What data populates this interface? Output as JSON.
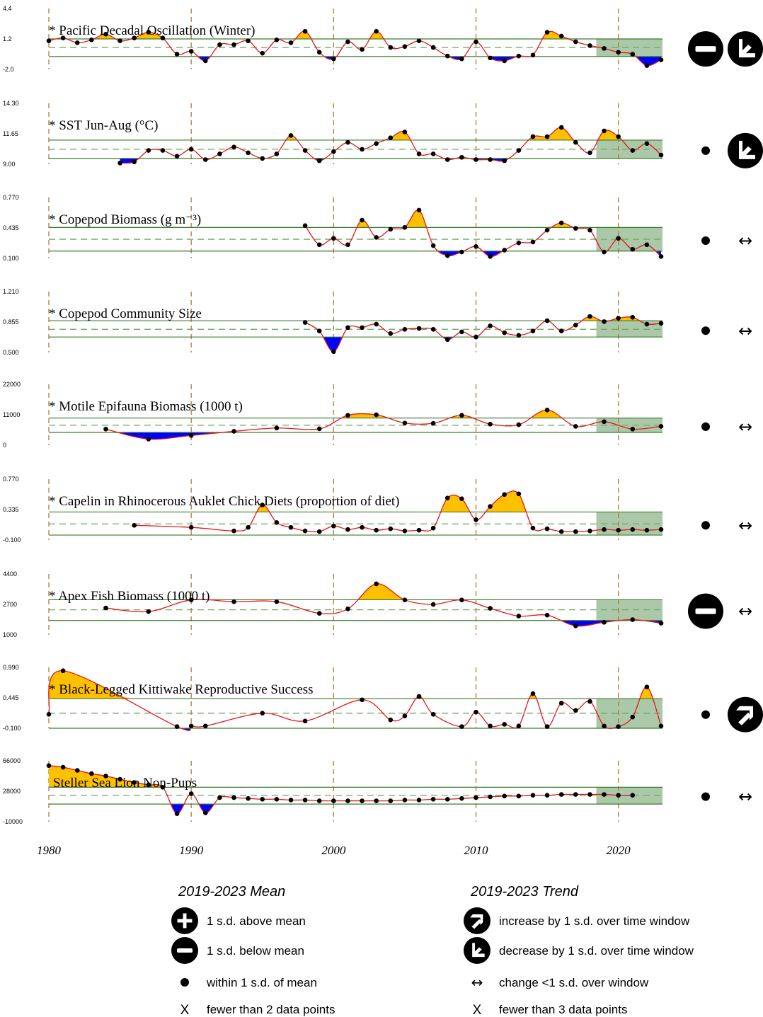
{
  "chart_data": {
    "type": "line",
    "x_axis": {
      "range": [
        1980,
        2023
      ],
      "tick_labels": [
        "1980",
        "1990",
        "2000",
        "2010",
        "2020"
      ],
      "tick_values": [
        1980,
        1990,
        2000,
        2010,
        2020
      ],
      "decade_guides": [
        1980,
        1990,
        2000,
        2010,
        2020
      ]
    },
    "highlight_window": [
      2019,
      2023
    ],
    "colors": {
      "line": "#e8141a",
      "above": "#ffc000",
      "below": "#0000ff",
      "sd_lines": "#3a7d2c",
      "mean_line": "#6fa862",
      "window": "#9cbf9a",
      "guides": "#b07a3a"
    },
    "panels": [
      {
        "title": "* Pacific Decadal Oscillation (Winter)",
        "ylim": [
          -2.0,
          4.4
        ],
        "tick_labels": [
          "4.4",
          "1.2",
          "-2.0"
        ],
        "mean": 0.3,
        "upper": 1.2,
        "lower": -0.65,
        "mean_status": "minus-icon",
        "trend_status": "decrease-icon",
        "years": [
          1980,
          1981,
          1982,
          1983,
          1984,
          1985,
          1986,
          1987,
          1988,
          1989,
          1990,
          1991,
          1992,
          1993,
          1994,
          1995,
          1996,
          1997,
          1998,
          1999,
          2000,
          2001,
          2002,
          2003,
          2004,
          2005,
          2006,
          2007,
          2008,
          2009,
          2010,
          2011,
          2012,
          2013,
          2014,
          2015,
          2016,
          2017,
          2018,
          2019,
          2020,
          2021,
          2022,
          2023
        ],
        "values": [
          1.0,
          1.3,
          0.8,
          1.1,
          1.7,
          1.0,
          1.3,
          1.9,
          1.3,
          -0.4,
          -0.1,
          -1.1,
          0.6,
          0.6,
          1.0,
          -0.3,
          1.1,
          0.8,
          2.0,
          -0.2,
          -0.9,
          0.9,
          0.1,
          2.0,
          0.3,
          0.4,
          1.0,
          0.3,
          -0.6,
          -0.9,
          0.9,
          -0.8,
          -1.1,
          -0.6,
          -0.5,
          1.9,
          1.5,
          0.9,
          0.5,
          0.2,
          -0.2,
          -0.4,
          -1.6,
          -1.0
        ]
      },
      {
        "title": "* SST Jun-Aug (°C)",
        "ylim": [
          9.0,
          14.3
        ],
        "tick_labels": [
          "14.30",
          "11.65",
          "9.00"
        ],
        "mean": 10.3,
        "upper": 11.1,
        "lower": 9.5,
        "mean_status": "dot-icon",
        "trend_status": "decrease-icon",
        "years": [
          1985,
          1986,
          1987,
          1988,
          1989,
          1990,
          1991,
          1992,
          1993,
          1994,
          1995,
          1996,
          1997,
          1998,
          1999,
          2000,
          2001,
          2002,
          2003,
          2004,
          2005,
          2006,
          2007,
          2008,
          2009,
          2010,
          2011,
          2012,
          2013,
          2014,
          2015,
          2016,
          2017,
          2018,
          2019,
          2020,
          2021,
          2022,
          2023
        ],
        "values": [
          9.1,
          9.2,
          10.2,
          10.2,
          9.7,
          10.3,
          9.4,
          9.9,
          10.5,
          10.0,
          9.5,
          9.9,
          11.5,
          10.2,
          9.3,
          10.1,
          10.9,
          10.3,
          10.8,
          11.3,
          11.8,
          9.9,
          9.9,
          9.4,
          9.6,
          9.4,
          9.4,
          9.3,
          10.2,
          11.4,
          11.4,
          12.2,
          10.9,
          10.0,
          11.9,
          11.4,
          10.2,
          10.8,
          9.8
        ]
      },
      {
        "title": "* Copepod Biomass (g m⁻³)",
        "ylim": [
          0.1,
          0.77
        ],
        "tick_labels": [
          "0.770",
          "0.435",
          "0.100"
        ],
        "mean": 0.31,
        "upper": 0.44,
        "lower": 0.18,
        "mean_status": "dot-icon",
        "trend_status": "change-small-icon",
        "years": [
          1998,
          1999,
          2000,
          2001,
          2002,
          2003,
          2004,
          2005,
          2006,
          2007,
          2008,
          2009,
          2010,
          2011,
          2012,
          2013,
          2014,
          2015,
          2016,
          2017,
          2018,
          2019,
          2020,
          2021,
          2022,
          2023
        ],
        "values": [
          0.46,
          0.25,
          0.32,
          0.25,
          0.52,
          0.33,
          0.42,
          0.44,
          0.63,
          0.24,
          0.13,
          0.17,
          0.23,
          0.12,
          0.19,
          0.27,
          0.28,
          0.41,
          0.49,
          0.43,
          0.41,
          0.17,
          0.32,
          0.2,
          0.25,
          0.12
        ]
      },
      {
        "title": "* Copepod Community Size",
        "ylim": [
          0.5,
          1.21
        ],
        "tick_labels": [
          "1.210",
          "0.855",
          "0.500"
        ],
        "mean": 0.77,
        "upper": 0.87,
        "lower": 0.68,
        "mean_status": "dot-icon",
        "trend_status": "change-small-icon",
        "years": [
          1998,
          1999,
          2000,
          2001,
          2002,
          2003,
          2004,
          2005,
          2006,
          2007,
          2008,
          2009,
          2010,
          2011,
          2012,
          2013,
          2014,
          2015,
          2016,
          2017,
          2018,
          2019,
          2020,
          2021,
          2022,
          2023
        ],
        "values": [
          0.85,
          0.75,
          0.51,
          0.79,
          0.79,
          0.83,
          0.72,
          0.77,
          0.78,
          0.77,
          0.65,
          0.74,
          0.68,
          0.81,
          0.73,
          0.7,
          0.75,
          0.87,
          0.75,
          0.82,
          0.92,
          0.86,
          0.9,
          0.91,
          0.83,
          0.84
        ]
      },
      {
        "title": "*  Motile Epifauna Biomass (1000 t)",
        "ylim": [
          0,
          22000
        ],
        "tick_labels": [
          "22000",
          "11000",
          "0"
        ],
        "mean": 7200,
        "upper": 9800,
        "lower": 4600,
        "mean_status": "dot-icon",
        "trend_status": "change-small-icon",
        "years": [
          1984,
          1987,
          1990,
          1993,
          1996,
          1999,
          2001,
          2003,
          2005,
          2007,
          2009,
          2011,
          2013,
          2015,
          2017,
          2019,
          2021,
          2023
        ],
        "values": [
          5800,
          2200,
          3500,
          5000,
          6200,
          5900,
          10800,
          11000,
          8000,
          7900,
          10800,
          7600,
          7400,
          12700,
          6800,
          8500,
          5800,
          6800
        ]
      },
      {
        "title": "* Capelin in Rhinocerous Auklet Chick Diets (proportion of diet)",
        "ylim": [
          -0.1,
          0.77
        ],
        "tick_labels": [
          "0.770",
          "0.335",
          "-0.100"
        ],
        "mean": 0.13,
        "upper": 0.3,
        "lower": -0.03,
        "mean_status": "dot-icon",
        "trend_status": "change-small-icon",
        "years": [
          1986,
          1990,
          1993,
          1994,
          1995,
          1996,
          1997,
          1998,
          1999,
          2000,
          2001,
          2002,
          2003,
          2004,
          2005,
          2006,
          2007,
          2008,
          2009,
          2010,
          2011,
          2012,
          2013,
          2014,
          2015,
          2016,
          2017,
          2018,
          2019,
          2020,
          2021,
          2022,
          2023
        ],
        "values": [
          0.11,
          0.08,
          0.03,
          0.08,
          0.4,
          0.15,
          0.08,
          0.03,
          0.02,
          0.1,
          0.05,
          0.08,
          0.04,
          0.06,
          0.03,
          0.04,
          0.07,
          0.5,
          0.49,
          0.19,
          0.38,
          0.55,
          0.56,
          0.07,
          0.06,
          0.02,
          0.02,
          0.03,
          0.05,
          0.04,
          0.05,
          0.04,
          0.05
        ]
      },
      {
        "title": "* Apex Fish Biomass (1000 t)",
        "ylim": [
          1000,
          4400
        ],
        "tick_labels": [
          "4400",
          "2700",
          "1000"
        ],
        "mean": 2400,
        "upper": 2960,
        "lower": 1800,
        "mean_status": "minus-icon",
        "trend_status": "change-small-icon",
        "years": [
          1984,
          1987,
          1990,
          1993,
          1996,
          1999,
          2001,
          2003,
          2005,
          2007,
          2009,
          2011,
          2013,
          2015,
          2017,
          2019,
          2021,
          2023
        ],
        "values": [
          2500,
          2300,
          2950,
          2850,
          2850,
          2200,
          2450,
          3850,
          2950,
          2700,
          2950,
          2480,
          2050,
          2100,
          1500,
          1700,
          1850,
          1650
        ]
      },
      {
        "title": "* Black-Legged Kittiwake Reproductive Success",
        "ylim": [
          -0.1,
          0.99
        ],
        "tick_labels": [
          "0.990",
          "0.445",
          "-0.100"
        ],
        "mean": 0.17,
        "upper": 0.43,
        "lower": -0.1,
        "mean_status": "dot-icon",
        "trend_status": "increase-icon",
        "years": [
          1980,
          1981,
          1989,
          1990,
          1991,
          1995,
          1998,
          2002,
          2004,
          2005,
          2006,
          2007,
          2009,
          2010,
          2011,
          2012,
          2013,
          2014,
          2015,
          2016,
          2017,
          2018,
          2019,
          2020,
          2021,
          2022,
          2023
        ],
        "values": [
          0.15,
          0.93,
          -0.07,
          -0.06,
          -0.06,
          0.17,
          0.03,
          0.41,
          0.05,
          0.12,
          0.47,
          0.15,
          -0.07,
          0.19,
          -0.06,
          -0.03,
          -0.06,
          0.52,
          -0.07,
          0.35,
          0.22,
          0.38,
          -0.06,
          -0.07,
          0.1,
          0.64,
          -0.06
        ]
      },
      {
        "title": "Steller Sea Lion Non-Pups",
        "ylim": [
          -10000,
          66000
        ],
        "tick_labels": [
          "66000",
          "28000",
          "-10000"
        ],
        "mean": 23000,
        "upper": 33000,
        "lower": 12000,
        "mean_status": "dot-icon",
        "trend_status": "change-small-icon",
        "years": [
          1980,
          1981,
          1982,
          1983,
          1984,
          1985,
          1986,
          1987,
          1988,
          1989,
          1990,
          1991,
          1992,
          1993,
          1994,
          1995,
          1996,
          1997,
          1998,
          1999,
          2000,
          2001,
          2002,
          2003,
          2004,
          2005,
          2006,
          2007,
          2008,
          2009,
          2010,
          2011,
          2012,
          2013,
          2014,
          2015,
          2016,
          2017,
          2018,
          2019,
          2020,
          2021
        ],
        "values": [
          60000,
          58000,
          54000,
          50000,
          47000,
          43000,
          39000,
          36000,
          33000,
          0,
          25000,
          1000,
          20000,
          20000,
          19000,
          18000,
          18000,
          17000,
          17000,
          16000,
          16000,
          16000,
          16000,
          16000,
          16000,
          17000,
          17000,
          18000,
          18000,
          19000,
          20000,
          21000,
          22000,
          22000,
          23000,
          23000,
          24000,
          24000,
          24000,
          24000,
          23000,
          23000
        ]
      }
    ]
  },
  "legend": {
    "mean_heading": "2019-2023 Mean",
    "trend_heading": "2019-2023 Trend",
    "mean_items": [
      {
        "icon": "plus-icon",
        "label": "1 s.d. above mean"
      },
      {
        "icon": "minus-icon",
        "label": "1 s.d. below mean"
      },
      {
        "icon": "dot-icon",
        "label": "within 1 s.d. of mean"
      },
      {
        "icon": "x-icon",
        "label": "fewer than 2 data points",
        "symbol": "X"
      }
    ],
    "trend_items": [
      {
        "icon": "increase-icon",
        "label": "increase by 1 s.d. over time window"
      },
      {
        "icon": "decrease-icon",
        "label": "decrease by 1 s.d. over time window"
      },
      {
        "icon": "change-small-icon",
        "label": "change <1 s.d. over window",
        "symbol": "↔"
      },
      {
        "icon": "x-icon",
        "label": "fewer than 3 data points",
        "symbol": "X"
      }
    ]
  }
}
